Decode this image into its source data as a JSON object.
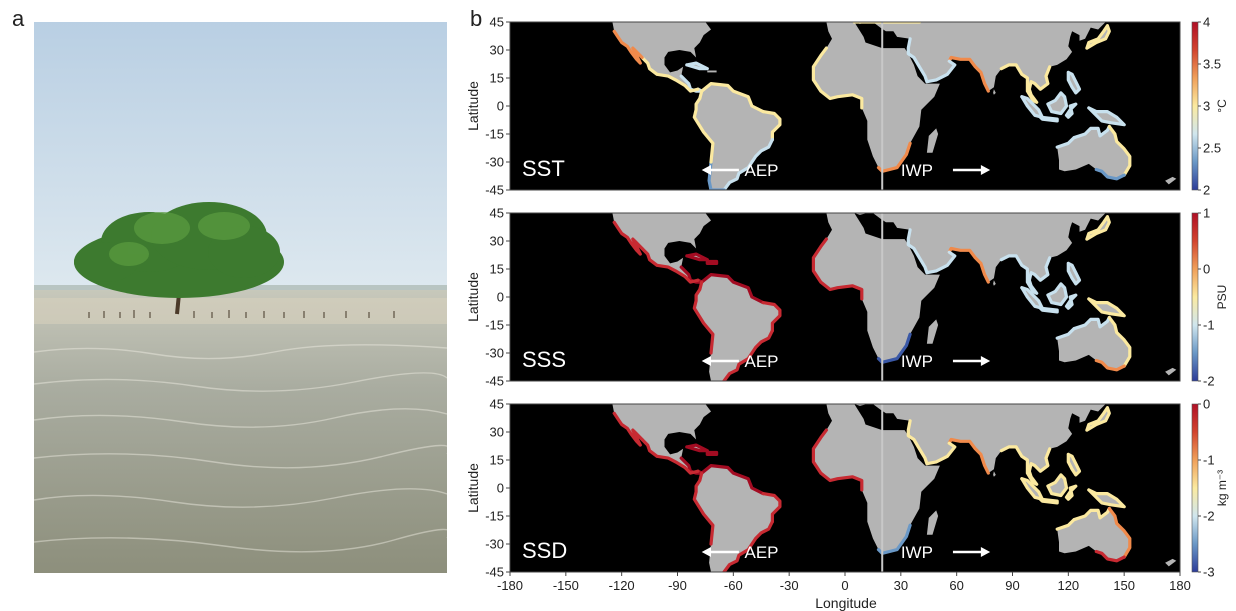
{
  "panel_a": {
    "letter": "a"
  },
  "panel_b": {
    "letter": "b"
  },
  "colors": {
    "ocean": "#000000",
    "land": "#b4b4b4",
    "divider": "#c8c8c8",
    "annotation": "#ffffff"
  },
  "annotations": {
    "aep": "AEP",
    "iwp": "IWP"
  },
  "chart_data": [
    {
      "type": "heatmap",
      "name": "SST",
      "panel_label": "SST",
      "xlabel": "",
      "ylabel": "Latitude",
      "xlim": [
        -180,
        180
      ],
      "ylim": [
        -45,
        45
      ],
      "yticks": [
        45,
        30,
        15,
        0,
        -15,
        -30,
        -45
      ],
      "xticks": [],
      "divider_longitude": 20,
      "colorbar": {
        "label": "°C",
        "min": 2,
        "max": 4,
        "ticks": [
          "4",
          "3.5",
          "3",
          "2.5",
          "2"
        ],
        "colors": [
          "#2c3c99",
          "#6a98c6",
          "#d0e6ee",
          "#fbeaa0",
          "#f0a05a",
          "#d2452f",
          "#b00f26"
        ]
      }
    },
    {
      "type": "heatmap",
      "name": "SSS",
      "panel_label": "SSS",
      "xlabel": "",
      "ylabel": "Latitude",
      "xlim": [
        -180,
        180
      ],
      "ylim": [
        -45,
        45
      ],
      "yticks": [
        45,
        30,
        15,
        0,
        -15,
        -30,
        -45
      ],
      "xticks": [],
      "divider_longitude": 20,
      "colorbar": {
        "label": "PSU",
        "min": -2,
        "max": 1,
        "ticks": [
          "1",
          "0",
          "-1",
          "-2"
        ],
        "colors": [
          "#2c3c99",
          "#6a98c6",
          "#d0e6ee",
          "#fbeaa0",
          "#f0a05a",
          "#d2452f",
          "#b00f26"
        ]
      }
    },
    {
      "type": "heatmap",
      "name": "SSD",
      "panel_label": "SSD",
      "xlabel": "Longitude",
      "ylabel": "Latitude",
      "xlim": [
        -180,
        180
      ],
      "ylim": [
        -45,
        45
      ],
      "yticks": [
        45,
        30,
        15,
        0,
        -15,
        -30,
        -45
      ],
      "xticks": [
        -180,
        -150,
        -120,
        -90,
        -60,
        -30,
        0,
        30,
        60,
        90,
        120,
        150,
        180
      ],
      "divider_longitude": 20,
      "colorbar": {
        "label": "kg m⁻³",
        "min": -3,
        "max": 0,
        "ticks": [
          "0",
          "-1",
          "-2",
          "-3"
        ],
        "colors": [
          "#2c3c99",
          "#6a98c6",
          "#d0e6ee",
          "#fbeaa0",
          "#f0a05a",
          "#d2452f",
          "#b00f26"
        ]
      }
    }
  ]
}
